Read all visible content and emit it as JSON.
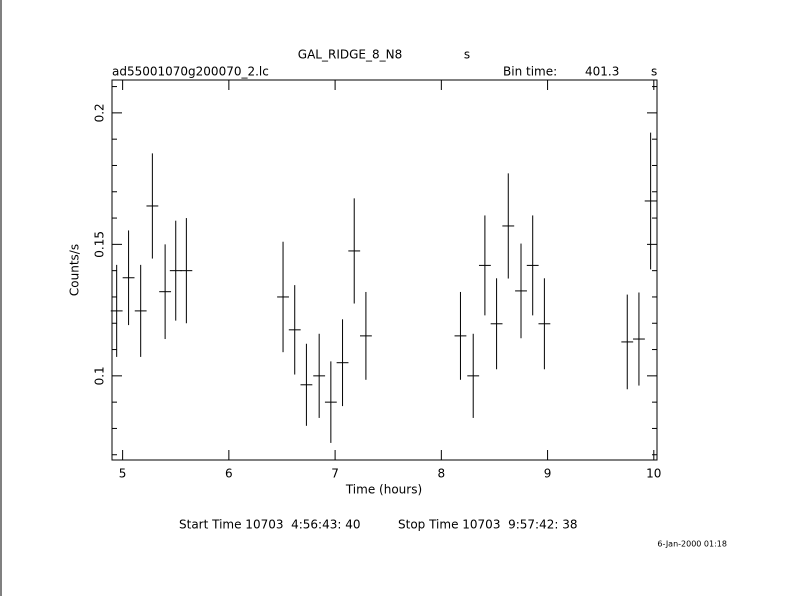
{
  "chart_data": {
    "type": "errorbar",
    "title": "GAL_RIDGE_8_N8",
    "title_unit": "s",
    "subtitle_left": "ad55001070g200070_2.lc",
    "bin_time_label": "Bin time:",
    "bin_time": "401.3",
    "bin_time_unit": "s",
    "xlabel": "Time (hours)",
    "ylabel": "Counts/s",
    "start_time": "Start Time 10703  4:56:43: 40",
    "stop_time": "Stop Time 10703  9:57:42: 38",
    "footer_date": "6-Jan-2000 01:18",
    "xlim": [
      4.9,
      10.03
    ],
    "xticks": [
      5,
      6,
      7,
      8,
      9,
      10
    ],
    "ylim": [
      0.068,
      0.2125
    ],
    "yticks": [
      0.1,
      0.15,
      0.2
    ],
    "yminorticks": [
      0.07,
      0.08,
      0.09,
      0.11,
      0.12,
      0.13,
      0.14,
      0.16,
      0.17,
      0.18,
      0.19,
      0.21
    ],
    "color": "#000000",
    "xerr": 0.0557,
    "x": [
      4.944,
      5.056,
      5.17,
      5.28,
      5.4,
      5.5,
      5.6,
      6.51,
      6.62,
      6.73,
      6.85,
      6.96,
      7.07,
      7.18,
      7.29,
      8.18,
      8.3,
      8.41,
      8.52,
      8.63,
      8.75,
      8.86,
      8.97,
      9.75,
      9.86,
      9.97
    ],
    "values": [
      0.1247,
      0.1373,
      0.1247,
      0.1646,
      0.132,
      0.14,
      0.14,
      0.13,
      0.1175,
      0.0966,
      0.1,
      0.09,
      0.105,
      0.1475,
      0.1152,
      0.1152,
      0.1,
      0.142,
      0.1198,
      0.157,
      0.1323,
      0.142,
      0.1198,
      0.1129,
      0.114,
      0.1665
    ],
    "errors": [
      0.0175,
      0.018,
      0.0175,
      0.02,
      0.018,
      0.019,
      0.02,
      0.021,
      0.017,
      0.0156,
      0.016,
      0.0155,
      0.0165,
      0.02,
      0.0167,
      0.0167,
      0.016,
      0.019,
      0.0173,
      0.02,
      0.018,
      0.019,
      0.0173,
      0.018,
      0.0177,
      0.026
    ]
  }
}
